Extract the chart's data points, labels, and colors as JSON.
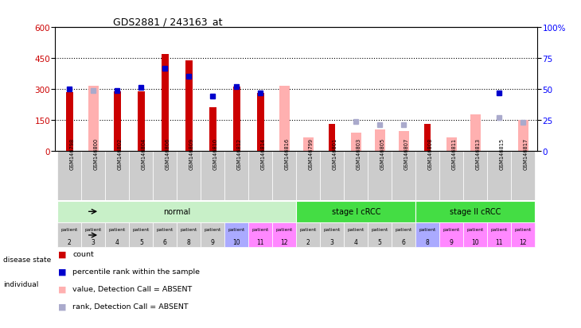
{
  "title": "GDS2881 / 243163_at",
  "samples": [
    "GSM146798",
    "GSM146800",
    "GSM146802",
    "GSM146804",
    "GSM146806",
    "GSM146809",
    "GSM146810",
    "GSM146812",
    "GSM146814",
    "GSM146816",
    "GSM146799",
    "GSM146801",
    "GSM146803",
    "GSM146805",
    "GSM146807",
    "GSM146808",
    "GSM146811",
    "GSM146813",
    "GSM146815",
    "GSM146817"
  ],
  "count_values": [
    285,
    null,
    290,
    290,
    470,
    438,
    210,
    310,
    280,
    null,
    null,
    130,
    null,
    null,
    null,
    130,
    null,
    null,
    null,
    null
  ],
  "rank_values_pct": [
    50,
    null,
    49,
    51,
    67,
    60,
    44,
    52,
    47,
    null,
    null,
    null,
    null,
    null,
    null,
    null,
    null,
    null,
    47,
    null
  ],
  "absent_value": [
    null,
    315,
    null,
    null,
    null,
    null,
    null,
    null,
    null,
    315,
    65,
    null,
    90,
    105,
    95,
    null,
    65,
    175,
    null,
    150
  ],
  "absent_rank_pct": [
    null,
    49,
    null,
    null,
    null,
    null,
    null,
    null,
    null,
    null,
    null,
    null,
    24,
    21,
    21,
    null,
    null,
    null,
    27,
    23
  ],
  "disease_groups": [
    {
      "label": "normal",
      "start": 0,
      "end": 9,
      "color": "#C8F0C8"
    },
    {
      "label": "stage I cRCC",
      "start": 10,
      "end": 14,
      "color": "#44DD44"
    },
    {
      "label": "stage II cRCC",
      "start": 15,
      "end": 19,
      "color": "#44DD44"
    }
  ],
  "individual_colors": [
    "#CCCCCC",
    "#CCCCCC",
    "#CCCCCC",
    "#CCCCCC",
    "#CCCCCC",
    "#CCCCCC",
    "#CCCCCC",
    "#AAAAFF",
    "#FF88FF",
    "#FF88FF",
    "#CCCCCC",
    "#CCCCCC",
    "#CCCCCC",
    "#CCCCCC",
    "#CCCCCC",
    "#AAAAFF",
    "#FF88FF",
    "#FF88FF",
    "#FF88FF",
    "#FF88FF"
  ],
  "patient_nums": [
    2,
    3,
    4,
    5,
    6,
    8,
    9,
    10,
    11,
    12,
    2,
    3,
    4,
    5,
    6,
    8,
    9,
    10,
    11,
    12
  ],
  "ylim_left": [
    0,
    600
  ],
  "ylim_right": [
    0,
    100
  ],
  "yticks_left": [
    0,
    150,
    300,
    450,
    600
  ],
  "yticks_right": [
    0,
    25,
    50,
    75,
    100
  ],
  "count_color": "#CC0000",
  "rank_color": "#0000CC",
  "absent_value_color": "#FFB0B0",
  "absent_rank_color": "#AAAACC",
  "bg_color": "#FFFFFF",
  "sample_bg_color": "#CCCCCC"
}
